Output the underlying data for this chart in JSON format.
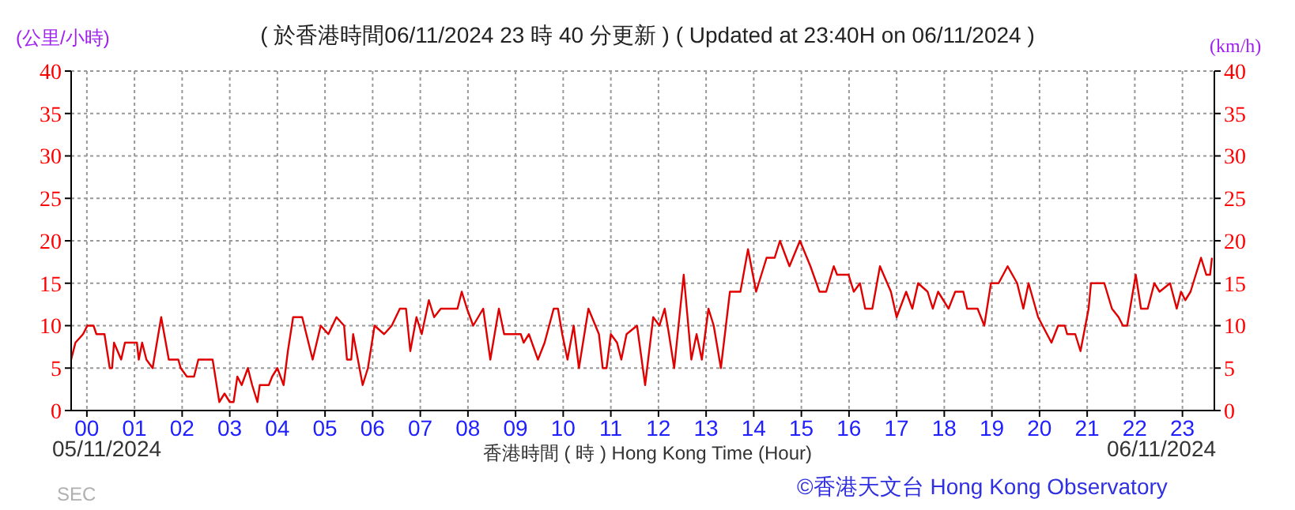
{
  "chart_data": {
    "type": "line",
    "title": "( 於香港時間06/11/2024 23 時 40 分更新 ) ( Updated at 23:40H on 06/11/2024 )",
    "ylabel": "(公里/小時)",
    "y2label": "(km/h)",
    "xlabel": "香港時間 ( 時 )  Hong Kong Time (Hour)",
    "annotations": [
      "05/11/2024",
      "06/11/2024",
      "©香港天文台 Hong Kong Observatory",
      "SEC"
    ],
    "xlim": [
      -0.33,
      23.67
    ],
    "xticks": [
      {
        "value": 0,
        "label": "00"
      },
      {
        "value": 1,
        "label": "01"
      },
      {
        "value": 2,
        "label": "02"
      },
      {
        "value": 3,
        "label": "03"
      },
      {
        "value": 4,
        "label": "04"
      },
      {
        "value": 5,
        "label": "05"
      },
      {
        "value": 6,
        "label": "06"
      },
      {
        "value": 7,
        "label": "07"
      },
      {
        "value": 8,
        "label": "08"
      },
      {
        "value": 9,
        "label": "09"
      },
      {
        "value": 10,
        "label": "10"
      },
      {
        "value": 11,
        "label": "11"
      },
      {
        "value": 12,
        "label": "12"
      },
      {
        "value": 13,
        "label": "13"
      },
      {
        "value": 14,
        "label": "14"
      },
      {
        "value": 15,
        "label": "15"
      },
      {
        "value": 16,
        "label": "16"
      },
      {
        "value": 17,
        "label": "17"
      },
      {
        "value": 18,
        "label": "18"
      },
      {
        "value": 19,
        "label": "19"
      },
      {
        "value": 20,
        "label": "20"
      },
      {
        "value": 21,
        "label": "21"
      },
      {
        "value": 22,
        "label": "22"
      },
      {
        "value": 23,
        "label": "23"
      }
    ],
    "ylim": [
      0,
      40
    ],
    "yticks": [
      0,
      5,
      10,
      15,
      20,
      25,
      30,
      35,
      40
    ],
    "y2lim": [
      0,
      40
    ],
    "y2ticks": [
      0,
      5,
      10,
      15,
      20,
      25,
      30,
      35,
      40
    ],
    "grid": true,
    "marker": "none",
    "line_style": "solid",
    "series": [
      {
        "color": "#e00000",
        "x": [
          -0.33,
          -0.24,
          -0.08,
          0.01,
          0.14,
          0.2,
          0.37,
          0.48,
          0.53,
          0.57,
          0.72,
          0.8,
          1.05,
          1.09,
          1.16,
          1.25,
          1.38,
          1.56,
          1.72,
          1.92,
          1.97,
          2.1,
          2.25,
          2.34,
          2.64,
          2.78,
          2.89,
          3.0,
          3.08,
          3.16,
          3.25,
          3.38,
          3.47,
          3.58,
          3.63,
          3.82,
          3.89,
          4.0,
          4.13,
          4.22,
          4.33,
          4.52,
          4.74,
          4.91,
          5.07,
          5.24,
          5.4,
          5.46,
          5.55,
          5.59,
          5.79,
          5.9,
          6.04,
          6.24,
          6.4,
          6.57,
          6.7,
          6.79,
          6.92,
          7.03,
          7.18,
          7.29,
          7.43,
          7.78,
          7.87,
          7.98,
          8.11,
          8.32,
          8.47,
          8.65,
          8.76,
          9.11,
          9.17,
          9.28,
          9.47,
          9.61,
          9.8,
          9.89,
          9.98,
          10.09,
          10.22,
          10.33,
          10.53,
          10.75,
          10.83,
          10.91,
          11.0,
          11.13,
          11.22,
          11.33,
          11.55,
          11.72,
          11.89,
          12.02,
          12.13,
          12.22,
          12.33,
          12.53,
          12.69,
          12.8,
          12.91,
          13.05,
          13.16,
          13.31,
          13.5,
          13.72,
          13.88,
          14.05,
          14.27,
          14.44,
          14.55,
          14.75,
          14.97,
          15.19,
          15.38,
          15.52,
          15.68,
          15.75,
          15.99,
          16.1,
          16.23,
          16.34,
          16.49,
          16.65,
          16.88,
          17.0,
          17.2,
          17.33,
          17.45,
          17.65,
          17.76,
          17.87,
          18.09,
          18.23,
          18.4,
          18.48,
          18.7,
          18.84,
          18.98,
          19.14,
          19.33,
          19.53,
          19.66,
          19.77,
          19.97,
          20.25,
          20.39,
          20.53,
          20.58,
          20.75,
          20.86,
          21.03,
          21.08,
          21.36,
          21.52,
          21.66,
          21.75,
          21.84,
          22.02,
          22.13,
          22.27,
          22.41,
          22.52,
          22.74,
          22.88,
          22.97,
          23.06,
          23.17,
          23.39,
          23.5,
          23.58,
          23.62
        ],
        "values": [
          6,
          8,
          9,
          10,
          10,
          9,
          9,
          5,
          5,
          8,
          6,
          8,
          8,
          6,
          8,
          6,
          5,
          11,
          6,
          6,
          5,
          4,
          4,
          6,
          6,
          1,
          2,
          1,
          1,
          4,
          3,
          5,
          3,
          1,
          3,
          3,
          4,
          5,
          3,
          7,
          11,
          11,
          6,
          10,
          9,
          11,
          10,
          6,
          6,
          9,
          3,
          5,
          10,
          9,
          10,
          12,
          12,
          7,
          11,
          9,
          13,
          11,
          12,
          12,
          14,
          12,
          10,
          12,
          6,
          12,
          9,
          9,
          8,
          9,
          6,
          8,
          12,
          12,
          9,
          6,
          10,
          5,
          12,
          9,
          5,
          5,
          9,
          8,
          6,
          9,
          10,
          3,
          11,
          10,
          12,
          9,
          5,
          16,
          6,
          9,
          6,
          12,
          10,
          5,
          14,
          14,
          19,
          14,
          18,
          18,
          20,
          17,
          20,
          17,
          14,
          14,
          17,
          16,
          16,
          14,
          15,
          12,
          12,
          17,
          14,
          11,
          14,
          12,
          15,
          14,
          12,
          14,
          12,
          14,
          14,
          12,
          12,
          10,
          15,
          15,
          17,
          15,
          12,
          15,
          11,
          8,
          10,
          10,
          9,
          9,
          7,
          12,
          15,
          15,
          12,
          11,
          10,
          10,
          16,
          12,
          12,
          15,
          14,
          15,
          12,
          14,
          13,
          14,
          18,
          16,
          16,
          18
        ]
      }
    ]
  }
}
